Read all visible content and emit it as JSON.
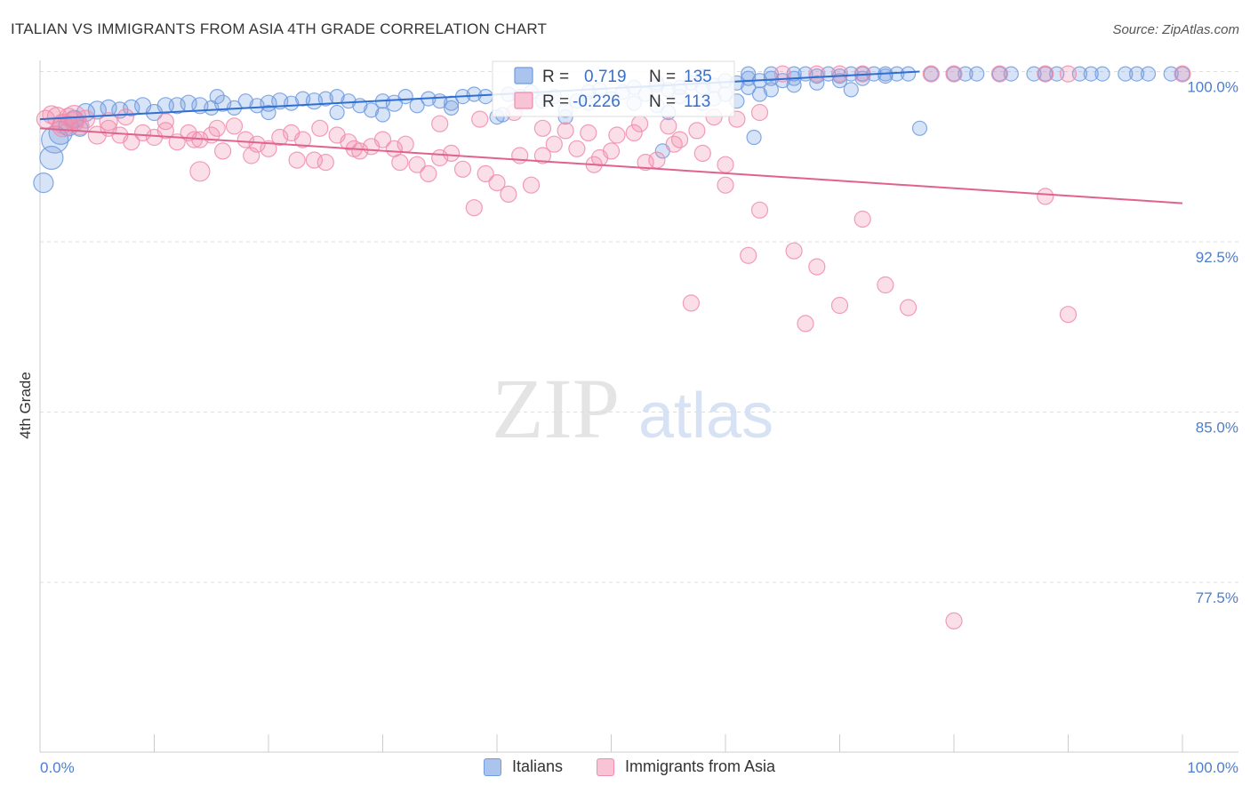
{
  "title": "ITALIAN VS IMMIGRANTS FROM ASIA 4TH GRADE CORRELATION CHART",
  "source": "Source: ZipAtlas.com",
  "watermark": {
    "zip": "ZIP",
    "atlas": "atlas"
  },
  "chart_data": {
    "type": "scatter",
    "ylabel": "4th Grade",
    "xlim": [
      0,
      100
    ],
    "ylim": [
      70.5,
      100.7
    ],
    "x_tick_labels": {
      "left": "0.0%",
      "right": "100.0%"
    },
    "y_ticks": [
      {
        "value": 100.0,
        "label": "100.0%"
      },
      {
        "value": 92.5,
        "label": "92.5%"
      },
      {
        "value": 85.0,
        "label": "85.0%"
      },
      {
        "value": 77.5,
        "label": "77.5%"
      }
    ],
    "colors": {
      "italians": "#6f9be0",
      "asia": "#f08cac",
      "italians_line": "#2f6fd1",
      "asia_line": "#e0628e"
    },
    "series": [
      {
        "name": "Italians",
        "key": "italians",
        "R": "0.719",
        "N": "135",
        "trend": {
          "x0": 0,
          "y0": 97.9,
          "x1": 77,
          "y1": 100.0
        },
        "points": [
          [
            0.3,
            95.1,
            11
          ],
          [
            1,
            96.2,
            13
          ],
          [
            1.3,
            97.0,
            15
          ],
          [
            1.8,
            97.3,
            13
          ],
          [
            2.5,
            97.6,
            11
          ],
          [
            3,
            97.9,
            10
          ],
          [
            4,
            98.2,
            10
          ],
          [
            5,
            98.3,
            10
          ],
          [
            6,
            98.4,
            9
          ],
          [
            7,
            98.3,
            9
          ],
          [
            8,
            98.4,
            9
          ],
          [
            9,
            98.5,
            9
          ],
          [
            10,
            98.2,
            9
          ],
          [
            11,
            98.5,
            9
          ],
          [
            12,
            98.5,
            9
          ],
          [
            13,
            98.6,
            9
          ],
          [
            14,
            98.5,
            9
          ],
          [
            15,
            98.4,
            8
          ],
          [
            15.5,
            98.9,
            8
          ],
          [
            16,
            98.6,
            9
          ],
          [
            17,
            98.4,
            8
          ],
          [
            18,
            98.7,
            8
          ],
          [
            19,
            98.5,
            8
          ],
          [
            20,
            98.6,
            9
          ],
          [
            21,
            98.7,
            9
          ],
          [
            22,
            98.6,
            8
          ],
          [
            23,
            98.8,
            8
          ],
          [
            24,
            98.7,
            9
          ],
          [
            25,
            98.8,
            8
          ],
          [
            26,
            98.9,
            8
          ],
          [
            27,
            98.7,
            8
          ],
          [
            28,
            98.5,
            8
          ],
          [
            29,
            98.3,
            8
          ],
          [
            30,
            98.7,
            8
          ],
          [
            31,
            98.6,
            9
          ],
          [
            32,
            98.9,
            8
          ],
          [
            33,
            98.5,
            8
          ],
          [
            34,
            98.8,
            8
          ],
          [
            35,
            98.7,
            8
          ],
          [
            36,
            98.6,
            8
          ],
          [
            37,
            98.9,
            8
          ],
          [
            38,
            99.0,
            8
          ],
          [
            39,
            98.9,
            8
          ],
          [
            40,
            98.0,
            8
          ],
          [
            41,
            99.0,
            8
          ],
          [
            42,
            98.9,
            8
          ],
          [
            43,
            99.1,
            8
          ],
          [
            44,
            98.7,
            8
          ],
          [
            45,
            98.9,
            8
          ],
          [
            46,
            98.0,
            8
          ],
          [
            47,
            98.7,
            8
          ],
          [
            48,
            99.1,
            8
          ],
          [
            49,
            99.2,
            8
          ],
          [
            50,
            98.8,
            8
          ],
          [
            51,
            99.1,
            8
          ],
          [
            52,
            99.3,
            8
          ],
          [
            53,
            99.0,
            8
          ],
          [
            54,
            99.4,
            8
          ],
          [
            55,
            99.2,
            8
          ],
          [
            56,
            99.3,
            8
          ],
          [
            57,
            99.5,
            8
          ],
          [
            58,
            99.3,
            8
          ],
          [
            59,
            99.4,
            8
          ],
          [
            60,
            99.6,
            8
          ],
          [
            61,
            99.5,
            8
          ],
          [
            62,
            99.7,
            8
          ],
          [
            63,
            99.6,
            8
          ],
          [
            64,
            99.7,
            8
          ],
          [
            65,
            99.6,
            8
          ],
          [
            66,
            99.7,
            8
          ],
          [
            68,
            99.8,
            8
          ],
          [
            70,
            99.8,
            8
          ],
          [
            72,
            99.9,
            8
          ],
          [
            74,
            99.9,
            8
          ],
          [
            76,
            99.9,
            8
          ],
          [
            80,
            99.9,
            8
          ],
          [
            84,
            99.9,
            8
          ],
          [
            88,
            99.9,
            8
          ],
          [
            92,
            99.9,
            8
          ],
          [
            96,
            99.9,
            8
          ],
          [
            100,
            99.9,
            8
          ],
          [
            30,
            98.1,
            8
          ],
          [
            40.5,
            98.1,
            8
          ],
          [
            48,
            98.6,
            8
          ],
          [
            52,
            98.6,
            8
          ],
          [
            54,
            98.5,
            8
          ],
          [
            56,
            98.9,
            8
          ],
          [
            58,
            98.6,
            8
          ],
          [
            60,
            99.0,
            8
          ],
          [
            62,
            99.3,
            8
          ],
          [
            64,
            99.2,
            8
          ],
          [
            66,
            99.4,
            8
          ],
          [
            68,
            99.5,
            8
          ],
          [
            70,
            99.6,
            8
          ],
          [
            72,
            99.7,
            8
          ],
          [
            74,
            99.8,
            8
          ],
          [
            54.5,
            96.5,
            8
          ],
          [
            54,
            99.5,
            8
          ],
          [
            58,
            99.8,
            8
          ],
          [
            62,
            99.9,
            8
          ],
          [
            64,
            99.9,
            8
          ],
          [
            66,
            99.9,
            8
          ],
          [
            67,
            99.9,
            8
          ],
          [
            69,
            99.9,
            8
          ],
          [
            71,
            99.9,
            8
          ],
          [
            73,
            99.9,
            8
          ],
          [
            75,
            99.9,
            8
          ],
          [
            78,
            99.9,
            8
          ],
          [
            81,
            99.9,
            8
          ],
          [
            82,
            99.9,
            8
          ],
          [
            85,
            99.9,
            8
          ],
          [
            87,
            99.9,
            8
          ],
          [
            89,
            99.9,
            8
          ],
          [
            91,
            99.9,
            8
          ],
          [
            93,
            99.9,
            8
          ],
          [
            95,
            99.9,
            8
          ],
          [
            97,
            99.9,
            8
          ],
          [
            99,
            99.9,
            8
          ],
          [
            55,
            98.2,
            8
          ],
          [
            59,
            98.8,
            8
          ],
          [
            61,
            98.7,
            8
          ],
          [
            63,
            99.0,
            8
          ],
          [
            71,
            99.2,
            8
          ],
          [
            77,
            97.5,
            8
          ],
          [
            62.5,
            97.1,
            8
          ],
          [
            46,
            98.3,
            8
          ],
          [
            36,
            98.4,
            8
          ],
          [
            26,
            98.2,
            8
          ],
          [
            20,
            98.2,
            8
          ],
          [
            3.5,
            97.5,
            9
          ]
        ]
      },
      {
        "name": "Immigrants from Asia",
        "key": "asia",
        "R": "-0.226",
        "N": "113",
        "trend": {
          "x0": 0,
          "y0": 97.5,
          "x1": 100,
          "y1": 94.2
        },
        "points": [
          [
            0.5,
            97.9,
            10
          ],
          [
            1,
            98.1,
            10
          ],
          [
            1.5,
            98.0,
            11
          ],
          [
            2,
            97.7,
            11
          ],
          [
            2.5,
            98.0,
            10
          ],
          [
            3,
            97.8,
            11
          ],
          [
            3.5,
            97.6,
            10
          ],
          [
            4,
            97.9,
            10
          ],
          [
            5,
            97.2,
            10
          ],
          [
            6,
            97.5,
            9
          ],
          [
            7,
            97.2,
            9
          ],
          [
            8,
            96.9,
            9
          ],
          [
            9,
            97.3,
            9
          ],
          [
            10,
            97.1,
            9
          ],
          [
            11,
            97.4,
            9
          ],
          [
            12,
            96.9,
            9
          ],
          [
            13,
            97.3,
            9
          ],
          [
            14,
            97.0,
            9
          ],
          [
            15,
            97.2,
            9
          ],
          [
            16,
            96.5,
            9
          ],
          [
            17,
            97.6,
            9
          ],
          [
            18,
            97.0,
            9
          ],
          [
            19,
            96.8,
            9
          ],
          [
            20,
            96.6,
            9
          ],
          [
            21,
            97.1,
            9
          ],
          [
            22,
            97.3,
            9
          ],
          [
            23,
            97.0,
            9
          ],
          [
            24,
            96.1,
            9
          ],
          [
            25,
            96.0,
            9
          ],
          [
            26,
            97.2,
            9
          ],
          [
            27,
            96.9,
            9
          ],
          [
            28,
            96.5,
            9
          ],
          [
            29,
            96.7,
            9
          ],
          [
            30,
            97.0,
            9
          ],
          [
            31,
            96.6,
            9
          ],
          [
            32,
            96.8,
            9
          ],
          [
            33,
            95.9,
            9
          ],
          [
            34,
            95.5,
            9
          ],
          [
            35,
            96.2,
            9
          ],
          [
            36,
            96.4,
            9
          ],
          [
            37,
            95.7,
            9
          ],
          [
            38,
            94.0,
            9
          ],
          [
            39,
            95.5,
            9
          ],
          [
            40,
            95.1,
            9
          ],
          [
            41,
            94.6,
            9
          ],
          [
            42,
            96.3,
            9
          ],
          [
            43,
            95.0,
            9
          ],
          [
            44,
            97.5,
            9
          ],
          [
            45,
            96.8,
            9
          ],
          [
            46,
            97.4,
            9
          ],
          [
            47,
            96.6,
            9
          ],
          [
            48,
            97.3,
            9
          ],
          [
            49,
            96.2,
            9
          ],
          [
            50,
            96.5,
            9
          ],
          [
            52,
            97.3,
            9
          ],
          [
            53,
            96.0,
            9
          ],
          [
            54,
            96.1,
            9
          ],
          [
            55,
            97.6,
            9
          ],
          [
            56,
            97.0,
            9
          ],
          [
            58,
            96.4,
            9
          ],
          [
            60,
            95.0,
            9
          ],
          [
            63,
            93.9,
            9
          ],
          [
            66,
            92.1,
            9
          ],
          [
            68,
            91.4,
            9
          ],
          [
            70,
            89.7,
            9
          ],
          [
            72,
            93.5,
            9
          ],
          [
            74,
            90.6,
            9
          ],
          [
            76,
            89.6,
            9
          ],
          [
            67,
            88.9,
            9
          ],
          [
            80,
            75.8,
            9
          ],
          [
            57,
            89.8,
            9
          ],
          [
            62,
            91.9,
            9
          ],
          [
            88,
            94.5,
            9
          ],
          [
            90,
            89.3,
            9
          ],
          [
            60,
            95.9,
            9
          ],
          [
            3,
            98.0,
            13
          ],
          [
            2,
            97.6,
            12
          ],
          [
            6,
            97.8,
            10
          ],
          [
            7.5,
            98.0,
            9
          ],
          [
            11,
            97.8,
            9
          ],
          [
            13.5,
            97.0,
            9
          ],
          [
            14,
            95.6,
            11
          ],
          [
            15.5,
            97.5,
            9
          ],
          [
            18.5,
            96.3,
            9
          ],
          [
            22.5,
            96.1,
            9
          ],
          [
            24.5,
            97.5,
            9
          ],
          [
            27.5,
            96.6,
            9
          ],
          [
            31.5,
            96.0,
            9
          ],
          [
            35,
            97.7,
            9
          ],
          [
            38.5,
            97.9,
            9
          ],
          [
            41.5,
            98.2,
            9
          ],
          [
            44,
            96.3,
            9
          ],
          [
            48.5,
            95.9,
            9
          ],
          [
            50.5,
            97.2,
            9
          ],
          [
            52.5,
            97.7,
            9
          ],
          [
            55.5,
            96.8,
            9
          ],
          [
            57.5,
            97.4,
            9
          ],
          [
            59,
            98.0,
            9
          ],
          [
            61,
            97.9,
            9
          ],
          [
            63,
            98.2,
            9
          ],
          [
            65,
            99.9,
            9
          ],
          [
            68,
            99.9,
            9
          ],
          [
            70,
            99.9,
            9
          ],
          [
            72,
            99.9,
            9
          ],
          [
            78,
            99.9,
            9
          ],
          [
            80,
            99.9,
            9
          ],
          [
            84,
            99.9,
            9
          ],
          [
            88,
            99.9,
            9
          ],
          [
            90,
            99.9,
            9
          ],
          [
            100,
            99.9,
            9
          ]
        ]
      }
    ]
  },
  "legend": {
    "items": [
      {
        "key": "italians",
        "label": "Italians"
      },
      {
        "key": "asia",
        "label": "Immigrants from Asia"
      }
    ]
  },
  "stats_box": {
    "r_label": "R =",
    "n_label": "N ="
  }
}
